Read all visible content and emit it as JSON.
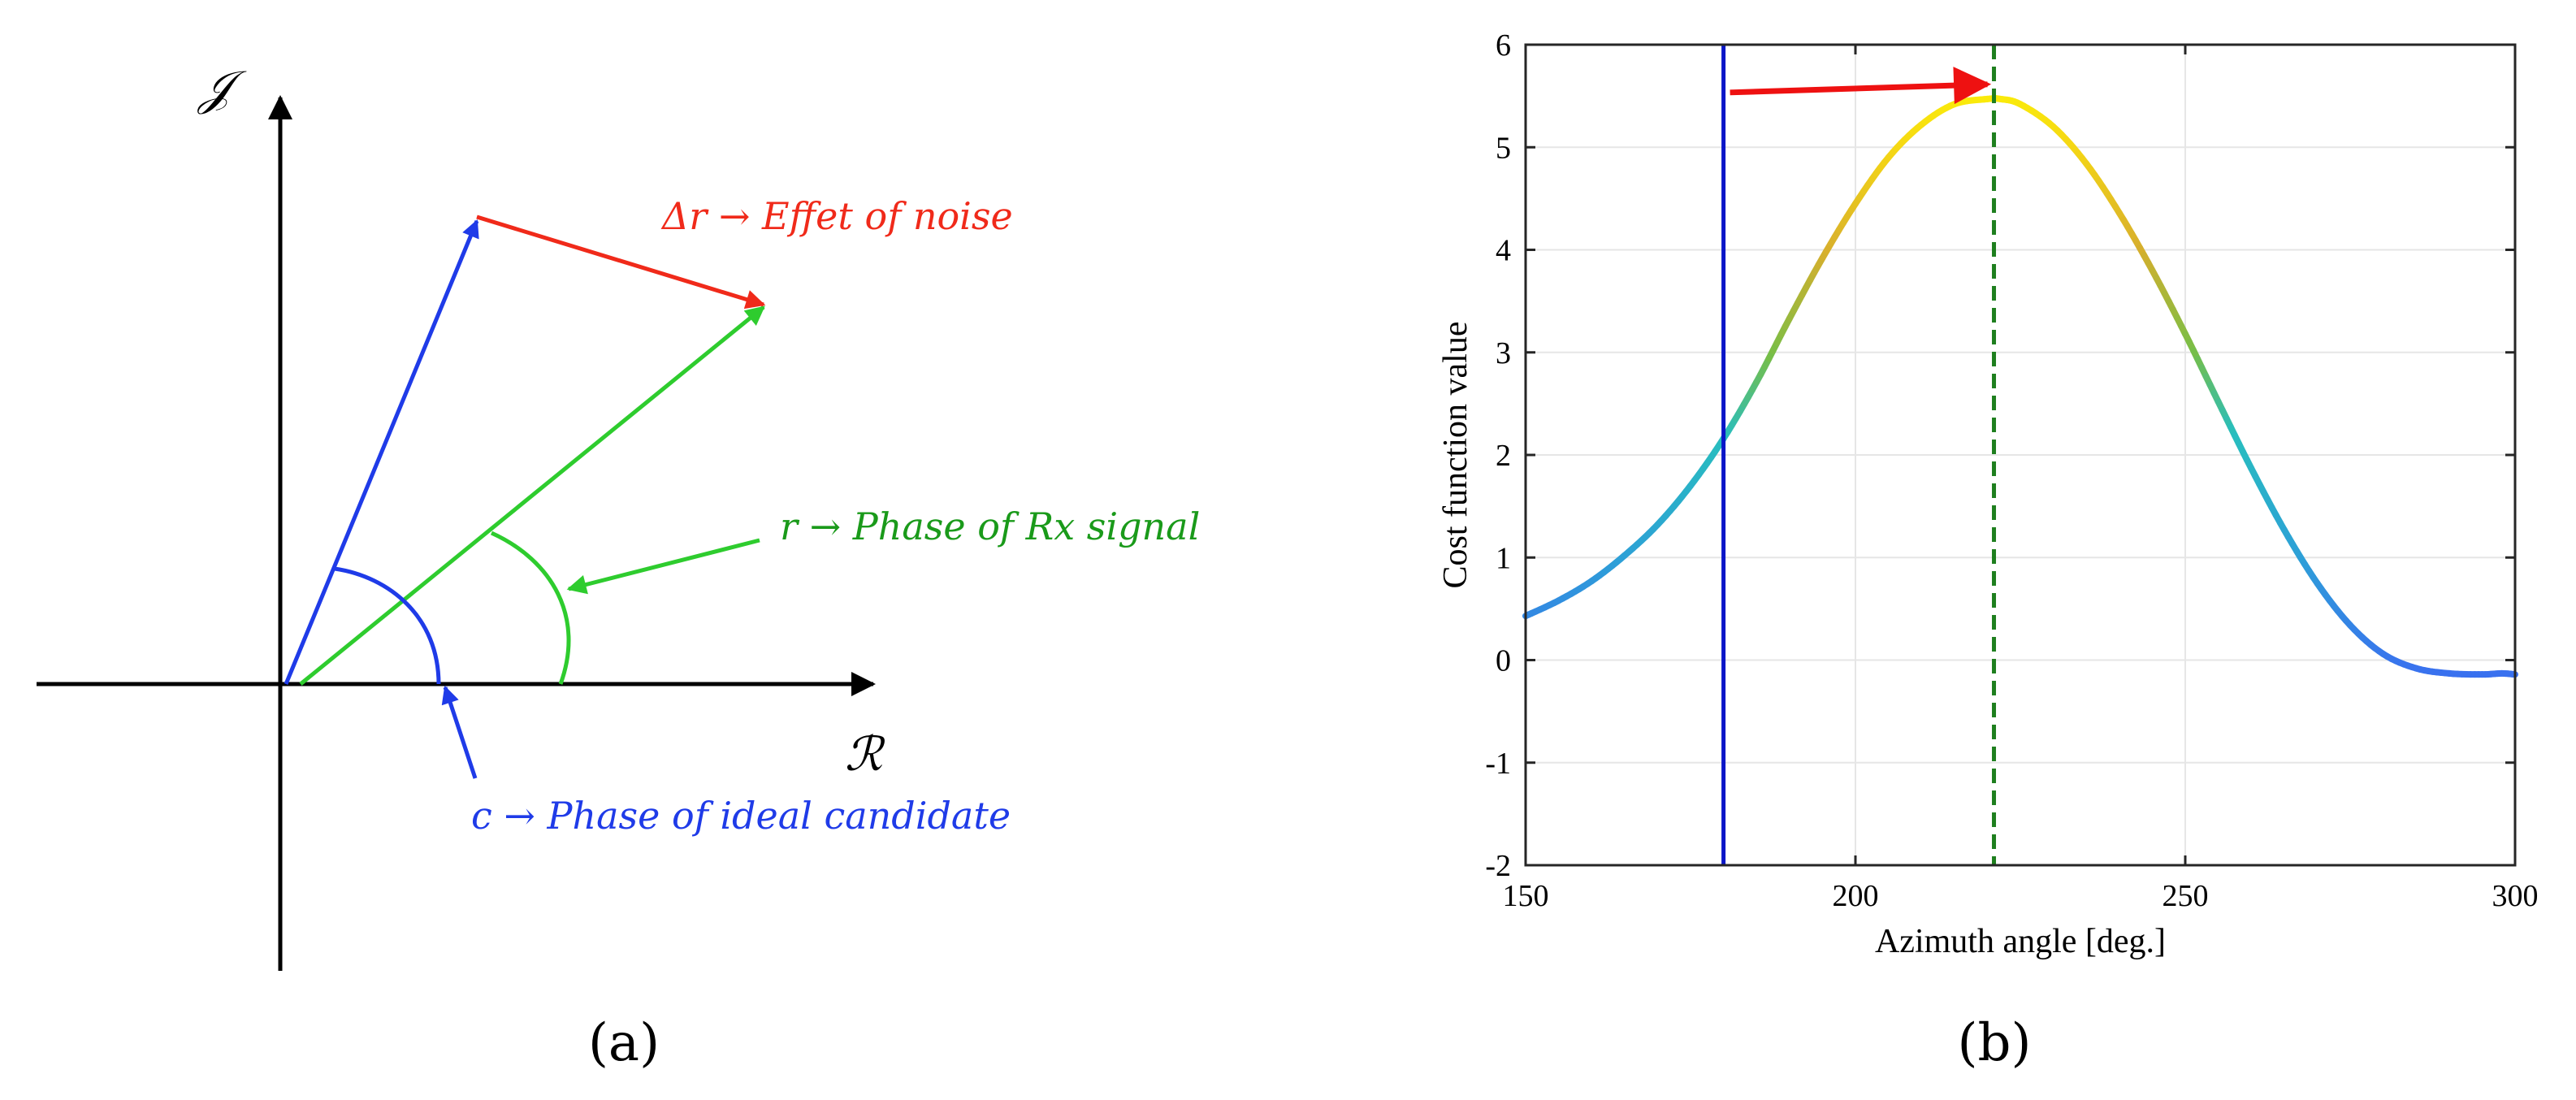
{
  "colors": {
    "axis": "#000000",
    "blue": "#1f3be8",
    "green": "#2ecc2e",
    "red": "#f02a1a",
    "text_green": "#1a9a1a",
    "vline_blue": "#0a16c8",
    "vline_green": "#1e7f1e",
    "arrow_red": "#ee1111",
    "grid": "#e6e6e6"
  },
  "panel_a": {
    "axis_label_imag": "𝒥",
    "axis_label_real": "ℛ",
    "label_noise": "Δr → Effet of noise",
    "label_rx": "r → Phase of Rx signal",
    "label_candidate": "c → Phase of ideal candidate",
    "panel_label": "(a)"
  },
  "panel_b": {
    "panel_label": "(b)"
  },
  "chart_data": {
    "type": "line",
    "xlabel": "Azimuth angle [deg.]",
    "ylabel": "Cost function value",
    "xlim": [
      150,
      300
    ],
    "ylim": [
      -2,
      6
    ],
    "xticks": [
      150,
      200,
      250,
      300
    ],
    "yticks": [
      -2,
      -1,
      0,
      1,
      2,
      3,
      4,
      5,
      6
    ],
    "grid": true,
    "series": [
      {
        "x": [
          150,
          155,
          160,
          165,
          170,
          175,
          180,
          185,
          190,
          195,
          200,
          205,
          210,
          215,
          220,
          222,
          225,
          230,
          235,
          240,
          245,
          250,
          255,
          260,
          265,
          270,
          275,
          280,
          285,
          290,
          295,
          298,
          300
        ],
        "values": [
          0.43,
          0.58,
          0.77,
          1.02,
          1.32,
          1.7,
          2.16,
          2.71,
          3.33,
          3.92,
          4.45,
          4.9,
          5.22,
          5.42,
          5.47,
          5.47,
          5.42,
          5.2,
          4.84,
          4.36,
          3.8,
          3.18,
          2.52,
          1.87,
          1.27,
          0.75,
          0.34,
          0.06,
          -0.08,
          -0.13,
          -0.14,
          -0.13,
          -0.14
        ]
      }
    ],
    "vlines": [
      {
        "x": 180,
        "style": "solid",
        "color": "blue"
      },
      {
        "x": 221,
        "style": "dashed",
        "color": "green"
      }
    ],
    "arrow": {
      "from_x": 180,
      "to_x": 221,
      "y": 5.55
    }
  }
}
